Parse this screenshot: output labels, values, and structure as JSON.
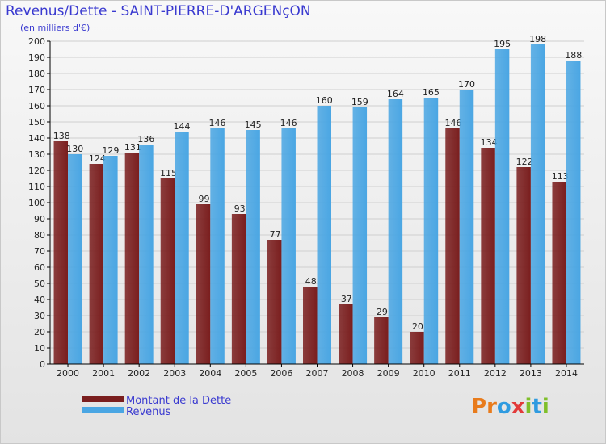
{
  "header": {
    "title": "Revenus/Dette - SAINT-PIERRE-D'ARGENçON",
    "unit_note": "(en milliers d'€)"
  },
  "logo": {
    "text": "Proxiti",
    "letters": [
      "P",
      "r",
      "o",
      "x",
      "i",
      "t",
      "i"
    ],
    "colors": [
      "#e87b1c",
      "#e87b1c",
      "#2f9be0",
      "#e23b3b",
      "#7fbf2a",
      "#2f9be0",
      "#7fbf2a"
    ]
  },
  "colors": {
    "dette": "#7a1e1e",
    "revenus": "#4aa6e3",
    "grid": "#cfcfcf",
    "axis": "#000000"
  },
  "chart_data": {
    "type": "bar",
    "title": "Revenus/Dette - SAINT-PIERRE-D'ARGENçON",
    "subtitle": "(en milliers d'€)",
    "categories": [
      "2000",
      "2001",
      "2002",
      "2003",
      "2004",
      "2005",
      "2006",
      "2007",
      "2008",
      "2009",
      "2010",
      "2011",
      "2012",
      "2013",
      "2014"
    ],
    "series": [
      {
        "name": "Montant de la Dette",
        "values": [
          138,
          124,
          131,
          115,
          99,
          93,
          77,
          48,
          37,
          29,
          20,
          146,
          134,
          122,
          113
        ]
      },
      {
        "name": "Revenus",
        "values": [
          130,
          129,
          136,
          144,
          146,
          145,
          146,
          160,
          159,
          164,
          165,
          170,
          195,
          198,
          188
        ]
      }
    ],
    "ylim": [
      0,
      200
    ],
    "ytick_step": 10,
    "grid": true,
    "legend_position": "bottom-left"
  }
}
